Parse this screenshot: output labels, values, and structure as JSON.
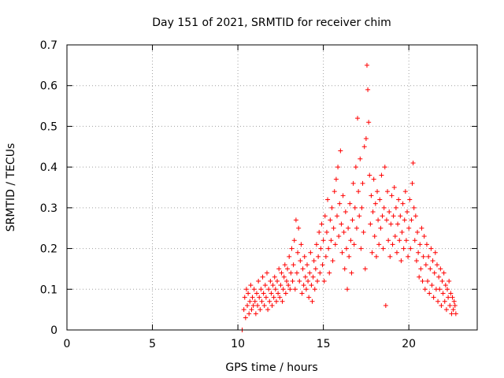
{
  "chart_data": {
    "type": "scatter",
    "title": "Day 151 of 2021, SRMTID for receiver chim",
    "xlabel": "GPS time / hours",
    "ylabel": "SRMTID / TECUs",
    "xlim": [
      0,
      24
    ],
    "ylim": [
      0,
      0.7
    ],
    "xticks": [
      0,
      5,
      10,
      15,
      20
    ],
    "yticks": [
      0,
      0.1,
      0.2,
      0.3,
      0.4,
      0.5,
      0.6,
      0.7
    ],
    "xtick_labels": [
      "0",
      "5",
      "10",
      "15",
      "20"
    ],
    "ytick_labels": [
      "0",
      "0.1",
      "0.2",
      "0.3",
      "0.4",
      "0.5",
      "0.6",
      "0.7"
    ],
    "grid": true,
    "marker": "+",
    "color": "#ff0000",
    "series": [
      {
        "name": "SRMTID",
        "points": [
          [
            10.25,
            0.0
          ],
          [
            10.35,
            0.05
          ],
          [
            10.4,
            0.08
          ],
          [
            10.45,
            0.03
          ],
          [
            10.5,
            0.1
          ],
          [
            10.55,
            0.06
          ],
          [
            10.6,
            0.09
          ],
          [
            10.65,
            0.04
          ],
          [
            10.7,
            0.07
          ],
          [
            10.75,
            0.11
          ],
          [
            10.8,
            0.05
          ],
          [
            10.85,
            0.08
          ],
          [
            10.9,
            0.06
          ],
          [
            10.95,
            0.1
          ],
          [
            11.0,
            0.07
          ],
          [
            11.05,
            0.04
          ],
          [
            11.1,
            0.09
          ],
          [
            11.15,
            0.06
          ],
          [
            11.2,
            0.12
          ],
          [
            11.25,
            0.08
          ],
          [
            11.3,
            0.05
          ],
          [
            11.35,
            0.1
          ],
          [
            11.4,
            0.07
          ],
          [
            11.45,
            0.13
          ],
          [
            11.5,
            0.09
          ],
          [
            11.55,
            0.06
          ],
          [
            11.6,
            0.11
          ],
          [
            11.65,
            0.08
          ],
          [
            11.7,
            0.14
          ],
          [
            11.75,
            0.05
          ],
          [
            11.8,
            0.1
          ],
          [
            11.85,
            0.07
          ],
          [
            11.9,
            0.12
          ],
          [
            11.95,
            0.09
          ],
          [
            12.0,
            0.06
          ],
          [
            12.05,
            0.11
          ],
          [
            12.1,
            0.08
          ],
          [
            12.15,
            0.13
          ],
          [
            12.2,
            0.1
          ],
          [
            12.25,
            0.07
          ],
          [
            12.3,
            0.12
          ],
          [
            12.35,
            0.09
          ],
          [
            12.4,
            0.15
          ],
          [
            12.45,
            0.08
          ],
          [
            12.5,
            0.11
          ],
          [
            12.55,
            0.14
          ],
          [
            12.6,
            0.07
          ],
          [
            12.65,
            0.1
          ],
          [
            12.7,
            0.13
          ],
          [
            12.75,
            0.16
          ],
          [
            12.8,
            0.09
          ],
          [
            12.85,
            0.12
          ],
          [
            12.9,
            0.15
          ],
          [
            12.95,
            0.11
          ],
          [
            13.0,
            0.18
          ],
          [
            13.05,
            0.1
          ],
          [
            13.1,
            0.14
          ],
          [
            13.15,
            0.2
          ],
          [
            13.2,
            0.12
          ],
          [
            13.25,
            0.16
          ],
          [
            13.3,
            0.22
          ],
          [
            13.35,
            0.1
          ],
          [
            13.4,
            0.27
          ],
          [
            13.45,
            0.14
          ],
          [
            13.5,
            0.19
          ],
          [
            13.55,
            0.25
          ],
          [
            13.6,
            0.12
          ],
          [
            13.65,
            0.17
          ],
          [
            13.7,
            0.21
          ],
          [
            13.75,
            0.09
          ],
          [
            13.8,
            0.15
          ],
          [
            13.85,
            0.11
          ],
          [
            13.9,
            0.18
          ],
          [
            13.95,
            0.13
          ],
          [
            14.0,
            0.1
          ],
          [
            14.05,
            0.16
          ],
          [
            14.1,
            0.12
          ],
          [
            14.15,
            0.08
          ],
          [
            14.2,
            0.14
          ],
          [
            14.25,
            0.19
          ],
          [
            14.3,
            0.11
          ],
          [
            14.35,
            0.07
          ],
          [
            14.4,
            0.13
          ],
          [
            14.45,
            0.17
          ],
          [
            14.5,
            0.1
          ],
          [
            14.55,
            0.15
          ],
          [
            14.6,
            0.21
          ],
          [
            14.65,
            0.12
          ],
          [
            14.7,
            0.18
          ],
          [
            14.75,
            0.24
          ],
          [
            14.8,
            0.14
          ],
          [
            14.85,
            0.2
          ],
          [
            14.9,
            0.26
          ],
          [
            14.95,
            0.16
          ],
          [
            15.0,
            0.22
          ],
          [
            15.05,
            0.12
          ],
          [
            15.1,
            0.28
          ],
          [
            15.15,
            0.18
          ],
          [
            15.2,
            0.24
          ],
          [
            15.25,
            0.32
          ],
          [
            15.3,
            0.2
          ],
          [
            15.35,
            0.14
          ],
          [
            15.4,
            0.27
          ],
          [
            15.45,
            0.22
          ],
          [
            15.5,
            0.3
          ],
          [
            15.55,
            0.17
          ],
          [
            15.6,
            0.25
          ],
          [
            15.65,
            0.34
          ],
          [
            15.7,
            0.21
          ],
          [
            15.75,
            0.37
          ],
          [
            15.8,
            0.28
          ],
          [
            15.85,
            0.4
          ],
          [
            15.9,
            0.23
          ],
          [
            15.95,
            0.31
          ],
          [
            16.0,
            0.44
          ],
          [
            16.05,
            0.26
          ],
          [
            16.1,
            0.19
          ],
          [
            16.15,
            0.33
          ],
          [
            16.2,
            0.24
          ],
          [
            16.25,
            0.15
          ],
          [
            16.3,
            0.29
          ],
          [
            16.35,
            0.2
          ],
          [
            16.4,
            0.1
          ],
          [
            16.45,
            0.25
          ],
          [
            16.5,
            0.18
          ],
          [
            16.55,
            0.31
          ],
          [
            16.6,
            0.22
          ],
          [
            16.65,
            0.14
          ],
          [
            16.7,
            0.27
          ],
          [
            16.75,
            0.36
          ],
          [
            16.8,
            0.21
          ],
          [
            16.85,
            0.3
          ],
          [
            16.9,
            0.4
          ],
          [
            16.95,
            0.25
          ],
          [
            17.0,
            0.52
          ],
          [
            17.05,
            0.34
          ],
          [
            17.1,
            0.28
          ],
          [
            17.15,
            0.42
          ],
          [
            17.2,
            0.2
          ],
          [
            17.25,
            0.3
          ],
          [
            17.3,
            0.36
          ],
          [
            17.35,
            0.24
          ],
          [
            17.4,
            0.45
          ],
          [
            17.45,
            0.15
          ],
          [
            17.5,
            0.47
          ],
          [
            17.55,
            0.65
          ],
          [
            17.6,
            0.59
          ],
          [
            17.65,
            0.51
          ],
          [
            17.7,
            0.38
          ],
          [
            17.75,
            0.26
          ],
          [
            17.8,
            0.33
          ],
          [
            17.85,
            0.19
          ],
          [
            17.9,
            0.29
          ],
          [
            17.95,
            0.37
          ],
          [
            18.0,
            0.23
          ],
          [
            18.05,
            0.31
          ],
          [
            18.1,
            0.18
          ],
          [
            18.15,
            0.34
          ],
          [
            18.2,
            0.27
          ],
          [
            18.25,
            0.21
          ],
          [
            18.3,
            0.32
          ],
          [
            18.35,
            0.25
          ],
          [
            18.4,
            0.38
          ],
          [
            18.45,
            0.28
          ],
          [
            18.5,
            0.2
          ],
          [
            18.55,
            0.3
          ],
          [
            18.6,
            0.4
          ],
          [
            18.65,
            0.06
          ],
          [
            18.7,
            0.27
          ],
          [
            18.75,
            0.34
          ],
          [
            18.8,
            0.22
          ],
          [
            18.85,
            0.29
          ],
          [
            18.9,
            0.18
          ],
          [
            18.95,
            0.26
          ],
          [
            19.0,
            0.33
          ],
          [
            19.05,
            0.21
          ],
          [
            19.1,
            0.28
          ],
          [
            19.15,
            0.35
          ],
          [
            19.2,
            0.23
          ],
          [
            19.25,
            0.3
          ],
          [
            19.3,
            0.19
          ],
          [
            19.35,
            0.26
          ],
          [
            19.4,
            0.32
          ],
          [
            19.45,
            0.22
          ],
          [
            19.5,
            0.28
          ],
          [
            19.55,
            0.17
          ],
          [
            19.6,
            0.24
          ],
          [
            19.65,
            0.31
          ],
          [
            19.7,
            0.2
          ],
          [
            19.75,
            0.27
          ],
          [
            19.8,
            0.34
          ],
          [
            19.85,
            0.22
          ],
          [
            19.9,
            0.29
          ],
          [
            19.95,
            0.18
          ],
          [
            20.0,
            0.25
          ],
          [
            20.05,
            0.32
          ],
          [
            20.1,
            0.2
          ],
          [
            20.15,
            0.27
          ],
          [
            20.2,
            0.36
          ],
          [
            20.25,
            0.41
          ],
          [
            20.3,
            0.3
          ],
          [
            20.35,
            0.22
          ],
          [
            20.4,
            0.28
          ],
          [
            20.45,
            0.17
          ],
          [
            20.5,
            0.24
          ],
          [
            20.55,
            0.19
          ],
          [
            20.6,
            0.13
          ],
          [
            20.65,
            0.21
          ],
          [
            20.7,
            0.15
          ],
          [
            20.75,
            0.25
          ],
          [
            20.8,
            0.12
          ],
          [
            20.85,
            0.18
          ],
          [
            20.9,
            0.23
          ],
          [
            20.95,
            0.1
          ],
          [
            21.0,
            0.16
          ],
          [
            21.05,
            0.21
          ],
          [
            21.1,
            0.12
          ],
          [
            21.15,
            0.18
          ],
          [
            21.2,
            0.09
          ],
          [
            21.25,
            0.15
          ],
          [
            21.3,
            0.2
          ],
          [
            21.35,
            0.11
          ],
          [
            21.4,
            0.17
          ],
          [
            21.45,
            0.08
          ],
          [
            21.5,
            0.14
          ],
          [
            21.55,
            0.19
          ],
          [
            21.6,
            0.1
          ],
          [
            21.65,
            0.16
          ],
          [
            21.7,
            0.07
          ],
          [
            21.75,
            0.13
          ],
          [
            21.8,
            0.1
          ],
          [
            21.85,
            0.15
          ],
          [
            21.9,
            0.06
          ],
          [
            21.95,
            0.12
          ],
          [
            22.0,
            0.09
          ],
          [
            22.05,
            0.14
          ],
          [
            22.1,
            0.07
          ],
          [
            22.15,
            0.11
          ],
          [
            22.2,
            0.05
          ],
          [
            22.25,
            0.1
          ],
          [
            22.3,
            0.08
          ],
          [
            22.35,
            0.12
          ],
          [
            22.4,
            0.06
          ],
          [
            22.45,
            0.09
          ],
          [
            22.5,
            0.04
          ],
          [
            22.55,
            0.08
          ],
          [
            22.6,
            0.05
          ],
          [
            22.65,
            0.07
          ],
          [
            22.7,
            0.06
          ],
          [
            22.75,
            0.04
          ]
        ]
      }
    ]
  }
}
